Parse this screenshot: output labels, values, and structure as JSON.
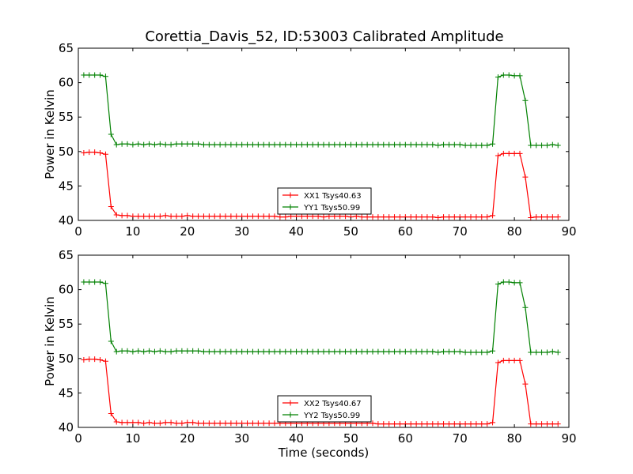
{
  "title": "Corettia_Davis_52, ID:53003 Calibrated Amplitude",
  "chart_data": [
    {
      "type": "line",
      "ylabel": "Power in Kelvin",
      "xlabel": "",
      "xlim": [
        0,
        90
      ],
      "ylim": [
        40,
        65
      ],
      "xticks": [
        0,
        10,
        20,
        30,
        40,
        50,
        60,
        70,
        80,
        90
      ],
      "yticks": [
        40,
        45,
        50,
        55,
        60,
        65
      ],
      "legend_position": "lower-center",
      "x": [
        1,
        2,
        3,
        4,
        5,
        6,
        7,
        8,
        9,
        10,
        11,
        12,
        13,
        14,
        15,
        16,
        17,
        18,
        19,
        20,
        21,
        22,
        23,
        24,
        25,
        26,
        27,
        28,
        29,
        30,
        31,
        32,
        33,
        34,
        35,
        36,
        37,
        38,
        39,
        40,
        41,
        42,
        43,
        44,
        45,
        46,
        47,
        48,
        49,
        50,
        51,
        52,
        53,
        54,
        55,
        56,
        57,
        58,
        59,
        60,
        61,
        62,
        63,
        64,
        65,
        66,
        67,
        68,
        69,
        70,
        71,
        72,
        73,
        74,
        75,
        76,
        77,
        78,
        79,
        80,
        81,
        82,
        83,
        84,
        85,
        86,
        87,
        88
      ],
      "series": [
        {
          "name": "XX1 Tsys40.63",
          "color": "#ff0000",
          "values": [
            49.8,
            49.9,
            49.9,
            49.8,
            49.6,
            42.0,
            40.8,
            40.7,
            40.7,
            40.6,
            40.6,
            40.6,
            40.6,
            40.6,
            40.6,
            40.7,
            40.6,
            40.6,
            40.6,
            40.7,
            40.6,
            40.6,
            40.6,
            40.6,
            40.6,
            40.6,
            40.6,
            40.6,
            40.6,
            40.6,
            40.6,
            40.6,
            40.6,
            40.6,
            40.6,
            40.6,
            40.5,
            40.5,
            40.6,
            40.6,
            40.6,
            40.6,
            40.6,
            40.6,
            40.5,
            40.6,
            40.6,
            40.6,
            40.6,
            40.5,
            40.6,
            40.5,
            40.5,
            40.5,
            40.5,
            40.5,
            40.5,
            40.5,
            40.5,
            40.5,
            40.5,
            40.5,
            40.5,
            40.5,
            40.5,
            40.4,
            40.5,
            40.5,
            40.5,
            40.5,
            40.5,
            40.5,
            40.5,
            40.5,
            40.5,
            40.7,
            49.4,
            49.7,
            49.7,
            49.7,
            49.7,
            46.3,
            40.4,
            40.5,
            40.5,
            40.5,
            40.5,
            40.5
          ]
        },
        {
          "name": "YY1 Tsys50.99",
          "color": "#008000",
          "values": [
            61.1,
            61.1,
            61.1,
            61.1,
            60.9,
            52.5,
            51.0,
            51.1,
            51.1,
            51.0,
            51.1,
            51.0,
            51.1,
            51.0,
            51.1,
            51.0,
            51.0,
            51.1,
            51.1,
            51.1,
            51.1,
            51.1,
            51.0,
            51.0,
            51.0,
            51.0,
            51.0,
            51.0,
            51.0,
            51.0,
            51.0,
            51.0,
            51.0,
            51.0,
            51.0,
            51.0,
            51.0,
            51.0,
            51.0,
            51.0,
            51.0,
            51.0,
            51.0,
            51.0,
            51.0,
            51.0,
            51.0,
            51.0,
            51.0,
            51.0,
            51.0,
            51.0,
            51.0,
            51.0,
            51.0,
            51.0,
            51.0,
            51.0,
            51.0,
            51.0,
            51.0,
            51.0,
            51.0,
            51.0,
            51.0,
            50.9,
            51.0,
            51.0,
            51.0,
            51.0,
            50.9,
            50.9,
            50.9,
            50.9,
            50.9,
            51.1,
            60.8,
            61.1,
            61.1,
            61.0,
            61.0,
            57.4,
            50.9,
            50.9,
            50.9,
            50.9,
            51.0,
            50.9
          ]
        }
      ]
    },
    {
      "type": "line",
      "ylabel": "Power in Kelvin",
      "xlabel": "Time (seconds)",
      "xlim": [
        0,
        90
      ],
      "ylim": [
        40,
        65
      ],
      "xticks": [
        0,
        10,
        20,
        30,
        40,
        50,
        60,
        70,
        80,
        90
      ],
      "yticks": [
        40,
        45,
        50,
        55,
        60,
        65
      ],
      "legend_position": "lower-center",
      "x": [
        1,
        2,
        3,
        4,
        5,
        6,
        7,
        8,
        9,
        10,
        11,
        12,
        13,
        14,
        15,
        16,
        17,
        18,
        19,
        20,
        21,
        22,
        23,
        24,
        25,
        26,
        27,
        28,
        29,
        30,
        31,
        32,
        33,
        34,
        35,
        36,
        37,
        38,
        39,
        40,
        41,
        42,
        43,
        44,
        45,
        46,
        47,
        48,
        49,
        50,
        51,
        52,
        53,
        54,
        55,
        56,
        57,
        58,
        59,
        60,
        61,
        62,
        63,
        64,
        65,
        66,
        67,
        68,
        69,
        70,
        71,
        72,
        73,
        74,
        75,
        76,
        77,
        78,
        79,
        80,
        81,
        82,
        83,
        84,
        85,
        86,
        87,
        88
      ],
      "series": [
        {
          "name": "XX2 Tsys40.67",
          "color": "#ff0000",
          "values": [
            49.8,
            49.9,
            49.9,
            49.8,
            49.6,
            42.0,
            40.8,
            40.7,
            40.7,
            40.7,
            40.7,
            40.6,
            40.7,
            40.6,
            40.6,
            40.7,
            40.7,
            40.6,
            40.6,
            40.7,
            40.7,
            40.6,
            40.6,
            40.6,
            40.6,
            40.6,
            40.6,
            40.6,
            40.6,
            40.6,
            40.6,
            40.6,
            40.6,
            40.6,
            40.6,
            40.6,
            40.6,
            40.6,
            40.6,
            40.6,
            40.6,
            40.6,
            40.6,
            40.6,
            40.6,
            40.6,
            40.6,
            40.6,
            40.6,
            40.6,
            40.6,
            40.6,
            40.6,
            40.6,
            40.5,
            40.5,
            40.5,
            40.5,
            40.5,
            40.5,
            40.5,
            40.5,
            40.5,
            40.5,
            40.5,
            40.5,
            40.5,
            40.5,
            40.5,
            40.5,
            40.5,
            40.5,
            40.5,
            40.5,
            40.5,
            40.7,
            49.4,
            49.7,
            49.7,
            49.7,
            49.7,
            46.3,
            40.5,
            40.5,
            40.5,
            40.5,
            40.5,
            40.5
          ]
        },
        {
          "name": "YY2 Tsys50.99",
          "color": "#008000",
          "values": [
            61.1,
            61.1,
            61.1,
            61.1,
            60.9,
            52.5,
            51.0,
            51.1,
            51.1,
            51.0,
            51.1,
            51.0,
            51.1,
            51.0,
            51.1,
            51.0,
            51.0,
            51.1,
            51.1,
            51.1,
            51.1,
            51.1,
            51.0,
            51.0,
            51.0,
            51.0,
            51.0,
            51.0,
            51.0,
            51.0,
            51.0,
            51.0,
            51.0,
            51.0,
            51.0,
            51.0,
            51.0,
            51.0,
            51.0,
            51.0,
            51.0,
            51.0,
            51.0,
            51.0,
            51.0,
            51.0,
            51.0,
            51.0,
            51.0,
            51.0,
            51.0,
            51.0,
            51.0,
            51.0,
            51.0,
            51.0,
            51.0,
            51.0,
            51.0,
            51.0,
            51.0,
            51.0,
            51.0,
            51.0,
            51.0,
            50.9,
            51.0,
            51.0,
            51.0,
            51.0,
            50.9,
            50.9,
            50.9,
            50.9,
            50.9,
            51.1,
            60.8,
            61.1,
            61.1,
            61.0,
            61.0,
            57.4,
            50.9,
            50.9,
            50.9,
            50.9,
            51.0,
            50.9
          ]
        }
      ]
    }
  ]
}
